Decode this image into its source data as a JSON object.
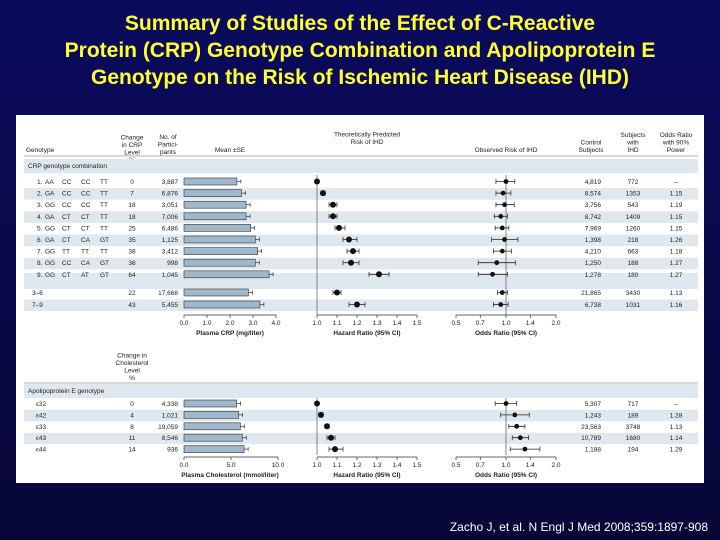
{
  "slide": {
    "title_line1": "Summary of Studies of the Effect of C-Reactive",
    "title_line2": "Protein (CRP) Genotype Combination and Apolipoprotein E",
    "title_line3": "Genotype on the Risk of Ischemic Heart Disease (IHD)",
    "citation": "Zacho J, et al. N Engl J Med 2008;359:1897-908"
  },
  "colors": {
    "background": "#0b0b5e",
    "title": "#ffff33",
    "bar_fill": "#9fb8cc",
    "shade": "#dfe8ef",
    "marker": "#111111"
  },
  "chart_data": {
    "type": "table",
    "columns": {
      "genotype": "Genotype",
      "change_crp": [
        "Change",
        "in CRP",
        "Level",
        "%"
      ],
      "participants": [
        "No. of",
        "Partici-",
        "pants"
      ],
      "mean_se": "Mean ±SE",
      "predicted": [
        "Theoretically Predicted",
        "Risk of IHD"
      ],
      "observed": "Observed Risk of IHD",
      "control": [
        "Control",
        "Subjects"
      ],
      "ihd_subjects": [
        "Subjects",
        "with",
        "IHD"
      ],
      "odds_90": [
        "Odds Ratio",
        "with 90%",
        "Power"
      ],
      "change_chol": [
        "Change in",
        "Cholesterol",
        "Level",
        "%"
      ]
    },
    "crp_section": {
      "label": "CRP genotype combination",
      "rows": [
        {
          "id": "1.",
          "g": [
            "AA",
            "CC",
            "CC",
            "TT"
          ],
          "change": "0",
          "n": "3,887",
          "mean": 2.3,
          "hr": 1.0,
          "hr_lo": 1.0,
          "hr_hi": 1.0,
          "or": 1.0,
          "or_lo": 0.87,
          "or_hi": 1.13,
          "control": "4,819",
          "ihd": "772",
          "power": "–"
        },
        {
          "id": "2.",
          "g": [
            "GA",
            "CC",
            "CC",
            "TT"
          ],
          "change": "7",
          "n": "6,876",
          "mean": 2.5,
          "hr": 1.03,
          "hr_lo": 1.02,
          "hr_hi": 1.04,
          "or": 0.96,
          "or_lo": 0.87,
          "or_hi": 1.07,
          "control": "8,574",
          "ihd": "1353",
          "power": "1.15"
        },
        {
          "id": "3.",
          "g": [
            "GG",
            "CC",
            "CC",
            "TT"
          ],
          "change": "18",
          "n": "3,051",
          "mean": 2.7,
          "hr": 1.08,
          "hr_lo": 1.06,
          "hr_hi": 1.1,
          "or": 0.98,
          "or_lo": 0.87,
          "or_hi": 1.12,
          "control": "3,756",
          "ihd": "543",
          "power": "1.19"
        },
        {
          "id": "4.",
          "g": [
            "GA",
            "CT",
            "CT",
            "TT"
          ],
          "change": "18",
          "n": "7,006",
          "mean": 2.7,
          "hr": 1.08,
          "hr_lo": 1.06,
          "hr_hi": 1.1,
          "or": 0.93,
          "or_lo": 0.85,
          "or_hi": 1.02,
          "control": "8,742",
          "ihd": "1409",
          "power": "1.15"
        },
        {
          "id": "5.",
          "g": [
            "GG",
            "CT",
            "CT",
            "TT"
          ],
          "change": "25",
          "n": "6,486",
          "mean": 2.9,
          "hr": 1.11,
          "hr_lo": 1.09,
          "hr_hi": 1.14,
          "or": 0.95,
          "or_lo": 0.86,
          "or_hi": 1.04,
          "control": "7,969",
          "ihd": "1260",
          "power": "1.15"
        },
        {
          "id": "6.",
          "g": [
            "GA",
            "CT",
            "CA",
            "GT"
          ],
          "change": "35",
          "n": "1,125",
          "mean": 3.1,
          "hr": 1.16,
          "hr_lo": 1.13,
          "hr_hi": 1.2,
          "or": 0.98,
          "or_lo": 0.82,
          "or_hi": 1.18,
          "control": "1,398",
          "ihd": "218",
          "power": "1.26"
        },
        {
          "id": "7.",
          "g": [
            "GG",
            "TT",
            "TT",
            "TT"
          ],
          "change": "38",
          "n": "3,412",
          "mean": 3.2,
          "hr": 1.18,
          "hr_lo": 1.15,
          "hr_hi": 1.21,
          "or": 0.95,
          "or_lo": 0.84,
          "or_hi": 1.08,
          "control": "4,210",
          "ihd": "663",
          "power": "1.18"
        },
        {
          "id": "8.",
          "g": [
            "GG",
            "CC",
            "CA",
            "GT"
          ],
          "change": "36",
          "n": "998",
          "mean": 3.1,
          "hr": 1.17,
          "hr_lo": 1.13,
          "hr_hi": 1.21,
          "or": 0.88,
          "or_lo": 0.68,
          "or_hi": 1.14,
          "control": "1,250",
          "ihd": "188",
          "power": "1.27"
        },
        {
          "id": "9.",
          "g": [
            "GG",
            "CT",
            "AT",
            "GT"
          ],
          "change": "64",
          "n": "1,045",
          "mean": 3.7,
          "hr": 1.31,
          "hr_lo": 1.26,
          "hr_hi": 1.36,
          "or": 0.83,
          "or_lo": 0.68,
          "or_hi": 1.02,
          "control": "1,278",
          "ihd": "180",
          "power": "1.27"
        }
      ],
      "summary_rows": [
        {
          "label": "3–6",
          "change": "22",
          "n": "17,668",
          "mean": 2.8,
          "hr": 1.1,
          "hr_lo": 1.08,
          "hr_hi": 1.12,
          "or": 0.95,
          "or_lo": 0.89,
          "or_hi": 1.02,
          "control": "21,865",
          "ihd": "3430",
          "power": "1.13"
        },
        {
          "label": "7–9",
          "change": "43",
          "n": "5,455",
          "mean": 3.3,
          "hr": 1.2,
          "hr_lo": 1.16,
          "hr_hi": 1.24,
          "or": 0.93,
          "or_lo": 0.84,
          "or_hi": 1.03,
          "control": "6,738",
          "ihd": "1031",
          "power": "1.16"
        }
      ],
      "crp_axis": {
        "label": "Plasma CRP (mg/liter)",
        "min": 0,
        "max": 4.0,
        "ticks": [
          "0.0",
          "1.0",
          "2.0",
          "3.0",
          "4.0"
        ]
      },
      "hr_axis": {
        "label": "Hazard Ratio (95% CI)",
        "min": 1.0,
        "max": 1.5,
        "ticks": [
          "1.0",
          "1.1",
          "1.2",
          "1.3",
          "1.4",
          "1.5"
        ]
      },
      "or_axis": {
        "label": "Odds Ratio (95% CI)",
        "min": 0.5,
        "max": 2.0,
        "ticks": [
          "0.5",
          "0.7",
          "1.0",
          "1.4",
          "2.0"
        ]
      }
    },
    "apoe_section": {
      "label": "Apolipoprotein E genotype",
      "rows": [
        {
          "g": "ε32",
          "change": "0",
          "n": "4,338",
          "mean": 5.6,
          "hr": 1.0,
          "hr_lo": 1.0,
          "hr_hi": 1.0,
          "or": 1.0,
          "or_lo": 0.86,
          "or_hi": 1.16,
          "control": "5,307",
          "ihd": "717",
          "power": "–"
        },
        {
          "g": "ε42",
          "change": "4",
          "n": "1,021",
          "mean": 5.8,
          "hr": 1.02,
          "hr_lo": 1.01,
          "hr_hi": 1.03,
          "or": 1.13,
          "or_lo": 0.93,
          "or_hi": 1.38,
          "control": "1,243",
          "ihd": "189",
          "power": "1.28"
        },
        {
          "g": "ε33",
          "change": "8",
          "n": "19,059",
          "mean": 6.0,
          "hr": 1.05,
          "hr_lo": 1.04,
          "hr_hi": 1.06,
          "or": 1.16,
          "or_lo": 1.04,
          "or_hi": 1.3,
          "control": "23,563",
          "ihd": "3748",
          "power": "1.13"
        },
        {
          "g": "ε43",
          "change": "11",
          "n": "8,546",
          "mean": 6.2,
          "hr": 1.07,
          "hr_lo": 1.05,
          "hr_hi": 1.09,
          "or": 1.22,
          "or_lo": 1.09,
          "or_hi": 1.37,
          "control": "10,789",
          "ihd": "1680",
          "power": "1.14"
        },
        {
          "g": "ε44",
          "change": "14",
          "n": "936",
          "mean": 6.4,
          "hr": 1.09,
          "hr_lo": 1.06,
          "hr_hi": 1.13,
          "or": 1.3,
          "or_lo": 1.06,
          "or_hi": 1.6,
          "control": "1,188",
          "ihd": "194",
          "power": "1.29"
        }
      ],
      "chol_axis": {
        "label": "Plasma Cholesterol (mmol/liter)",
        "min": 0,
        "max": 10,
        "ticks": [
          "0.0",
          "5.0",
          "10.0"
        ]
      },
      "hr_axis": {
        "label": "Hazard Ratio (95% CI)",
        "min": 1.0,
        "max": 1.5,
        "ticks": [
          "1.0",
          "1.1",
          "1.2",
          "1.3",
          "1.4",
          "1.5"
        ]
      },
      "or_axis": {
        "label": "Odds Ratio (95% CI)",
        "min": 0.5,
        "max": 2.0,
        "ticks": [
          "0.5",
          "0.7",
          "1.0",
          "1.4",
          "2.0"
        ]
      }
    }
  }
}
